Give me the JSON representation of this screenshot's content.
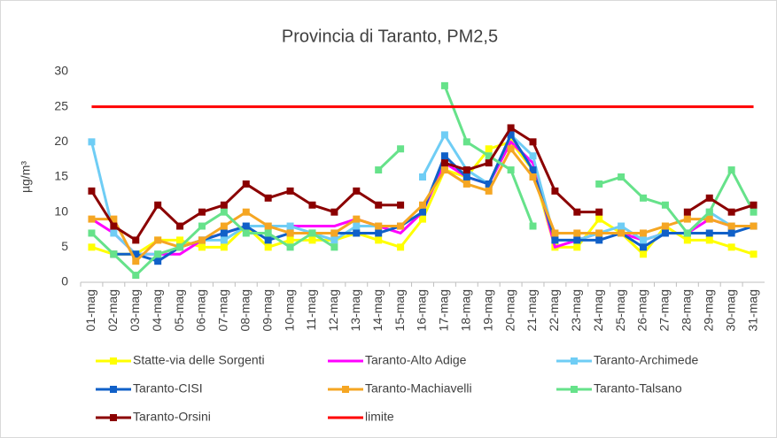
{
  "chart_data": {
    "type": "line",
    "title": "Provincia di Taranto, PM2,5",
    "y_label": "µg/m³",
    "categories": [
      "01-mag",
      "02-mag",
      "03-mag",
      "04-mag",
      "05-mag",
      "06-mag",
      "07-mag",
      "08-mag",
      "09-mag",
      "10-mag",
      "11-mag",
      "12-mag",
      "13-mag",
      "14-mag",
      "15-mag",
      "16-mag",
      "17-mag",
      "18-mag",
      "19-mag",
      "20-mag",
      "21-mag",
      "22-mag",
      "23-mag",
      "24-mag",
      "25-mag",
      "26-mag",
      "27-mag",
      "28-mag",
      "29-mag",
      "30-mag",
      "31-mag"
    ],
    "ylim": [
      0,
      30
    ],
    "yticks": [
      0,
      5,
      10,
      15,
      20,
      25,
      30
    ],
    "grid": false,
    "series": [
      {
        "name": "Statte-via delle Sorgenti",
        "color": "#ffff00",
        "marker": true,
        "values": [
          5,
          4,
          4,
          6,
          6,
          5,
          5,
          8,
          5,
          6,
          6,
          6,
          7,
          6,
          5,
          9,
          16,
          15,
          19,
          20,
          16,
          5,
          5,
          9,
          7,
          4,
          8,
          6,
          6,
          5,
          4
        ]
      },
      {
        "name": "Taranto-Alto Adige",
        "color": "#ff00ff",
        "marker": false,
        "values": [
          9,
          7,
          4,
          4,
          4,
          6,
          7,
          8,
          8,
          8,
          8,
          8,
          9,
          8,
          7,
          10,
          17,
          15,
          14,
          20,
          17,
          5,
          6,
          7,
          7,
          6,
          7,
          7,
          9,
          8,
          8
        ]
      },
      {
        "name": "Taranto-Archimede",
        "color": "#6fcdf5",
        "marker": true,
        "values": [
          20,
          7,
          4,
          4,
          5,
          6,
          6,
          8,
          8,
          8,
          7,
          6,
          8,
          8,
          null,
          15,
          21,
          16,
          14,
          21,
          18,
          6,
          6,
          7,
          8,
          6,
          7,
          7,
          10,
          8,
          8
        ]
      },
      {
        "name": "Taranto-CISI",
        "color": "#1060c8",
        "marker": true,
        "values": [
          null,
          4,
          4,
          3,
          5,
          6,
          7,
          8,
          6,
          7,
          7,
          7,
          7,
          7,
          8,
          10,
          18,
          15,
          14,
          21,
          16,
          6,
          6,
          6,
          7,
          5,
          7,
          7,
          7,
          7,
          8
        ]
      },
      {
        "name": "Taranto-Machiavelli",
        "color": "#f5a623",
        "marker": true,
        "values": [
          9,
          9,
          3,
          6,
          5,
          6,
          8,
          10,
          8,
          7,
          7,
          7,
          9,
          8,
          8,
          11,
          16,
          14,
          13,
          19,
          15,
          7,
          7,
          7,
          7,
          7,
          8,
          9,
          9,
          8,
          8
        ]
      },
      {
        "name": "Taranto-Talsano",
        "color": "#66e28a",
        "marker": true,
        "values": [
          7,
          4,
          1,
          4,
          5,
          8,
          10,
          7,
          7,
          5,
          7,
          5,
          null,
          16,
          19,
          null,
          28,
          20,
          18,
          16,
          8,
          null,
          null,
          14,
          15,
          12,
          11,
          7,
          10,
          16,
          10
        ]
      },
      {
        "name": "Taranto-Orsini",
        "color": "#8b0000",
        "marker": true,
        "values": [
          13,
          8,
          6,
          11,
          8,
          10,
          11,
          14,
          12,
          13,
          11,
          10,
          13,
          11,
          11,
          null,
          17,
          16,
          17,
          22,
          20,
          13,
          10,
          10,
          null,
          null,
          null,
          10,
          12,
          10,
          11
        ]
      },
      {
        "name": "limite",
        "color": "#ff0000",
        "marker": false,
        "values": [
          25,
          25,
          25,
          25,
          25,
          25,
          25,
          25,
          25,
          25,
          25,
          25,
          25,
          25,
          25,
          25,
          25,
          25,
          25,
          25,
          25,
          25,
          25,
          25,
          25,
          25,
          25,
          25,
          25,
          25,
          25
        ]
      }
    ]
  }
}
